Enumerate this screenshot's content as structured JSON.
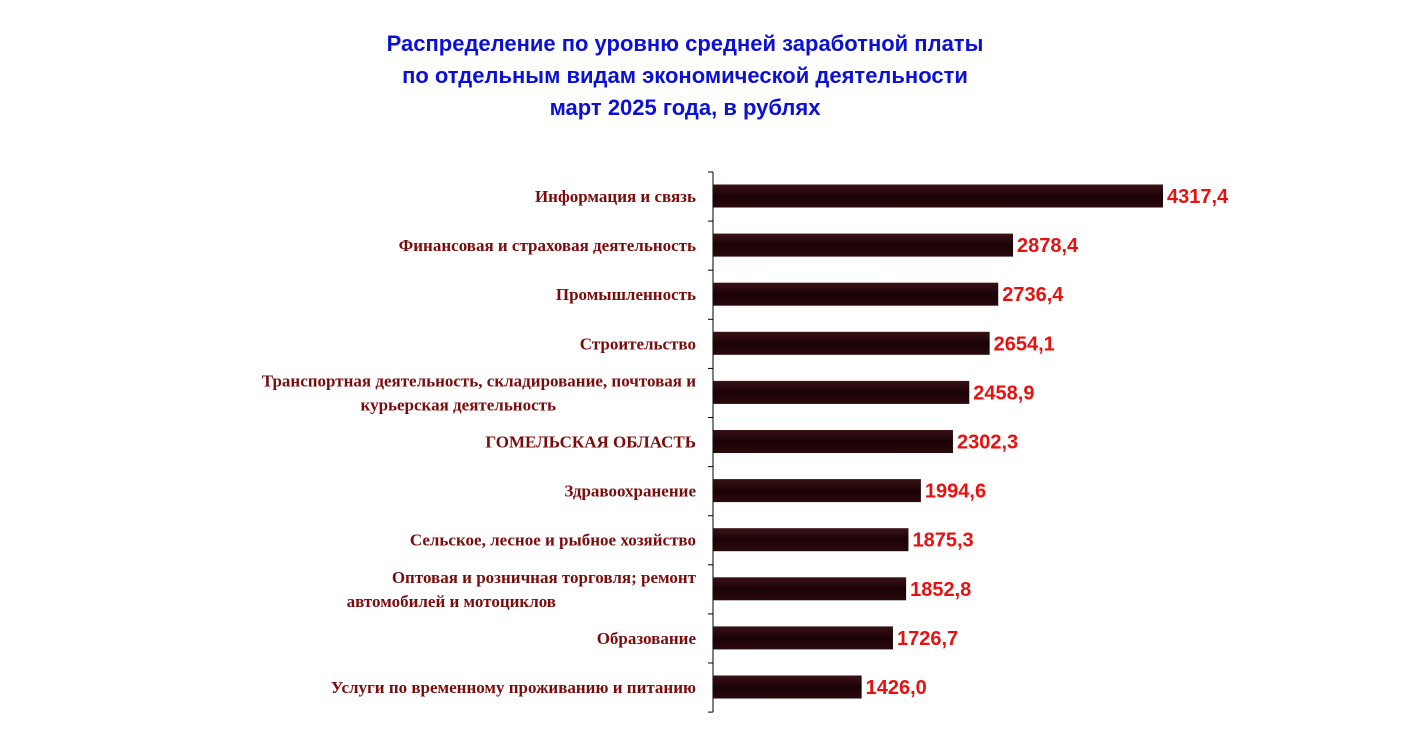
{
  "title": {
    "line1": "Распределение по уровню средней заработной платы",
    "line2": "по отдельным видам экономической деятельности",
    "line3": "март 2025 года, в рублях"
  },
  "colors": {
    "title": "#0a10d8",
    "category_label": "#7a0c0c",
    "value_label": "#e8110f",
    "bar_dark": "#1a0206",
    "bar_light": "#5a2a30"
  },
  "chart_data": {
    "type": "bar",
    "orientation": "horizontal",
    "grid": false,
    "legend": "none",
    "xlim": [
      0,
      4500
    ],
    "categories": [
      [
        "Информация и связь"
      ],
      [
        "Финансовая и страховая  деятельность"
      ],
      [
        "Промышленность"
      ],
      [
        "Строительство"
      ],
      [
        "Транспортная  деятельность, складирование, почтовая и",
        "курьерская деятельность"
      ],
      [
        "ГОМЕЛЬСКАЯ ОБЛАСТЬ"
      ],
      [
        "Здравоохранение"
      ],
      [
        "Сельское, лесное и рыбное хозяйство"
      ],
      [
        "Оптовая и розничная торговля; ремонт",
        "автомобилей и мотоциклов"
      ],
      [
        "Образование"
      ],
      [
        "Услуги по временному проживанию и питанию"
      ]
    ],
    "values": [
      4317.4,
      2878.4,
      2736.4,
      2654.1,
      2458.9,
      2302.3,
      1994.6,
      1875.3,
      1852.8,
      1726.7,
      1426.0
    ],
    "value_labels": [
      "4317,4",
      "2878,4",
      "2736,4",
      "2654,1",
      "2458,9",
      "2302,3",
      "1994,6",
      "1875,3",
      "1852,8",
      "1726,7",
      "1426,0"
    ]
  }
}
